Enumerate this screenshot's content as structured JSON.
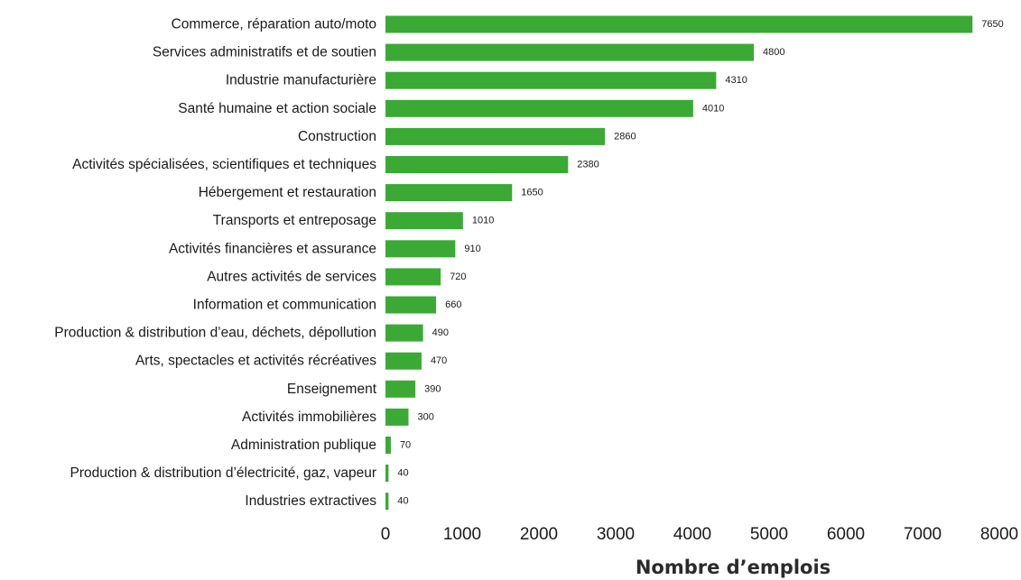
{
  "chart_data": {
    "type": "bar",
    "orientation": "horizontal",
    "categories": [
      "Commerce, réparation auto/moto",
      "Services administratifs et de soutien",
      "Industrie manufacturière",
      "Santé humaine et action sociale",
      "Construction",
      "Activités spécialisées, scientifiques et techniques",
      "Hébergement et restauration",
      "Transports et entreposage",
      "Activités financières et assurance",
      "Autres activités de services",
      "Information et communication",
      "Production & distribution d’eau, déchets, dépollution",
      "Arts, spectacles et activités récréatives",
      "Enseignement",
      "Activités immobilières",
      "Administration publique",
      "Production & distribution d’électricité, gaz, vapeur",
      "Industries extractives"
    ],
    "values": [
      7650,
      4800,
      4310,
      4010,
      2860,
      2380,
      1650,
      1010,
      910,
      720,
      660,
      490,
      470,
      390,
      300,
      70,
      40,
      40
    ],
    "data_labels": [
      "7650",
      "4800",
      "4310",
      "4010",
      "2860",
      "2380",
      "1650",
      "1010",
      "910",
      "720",
      "660",
      "490",
      "470",
      "390",
      "300",
      "70",
      "40",
      "40"
    ],
    "title": "",
    "xlabel": "Nombre d’emplois",
    "ylabel": "",
    "xlim": [
      0,
      8000
    ],
    "xticks": [
      0,
      1000,
      2000,
      3000,
      4000,
      5000,
      6000,
      7000,
      8000
    ],
    "xtick_labels": [
      "0",
      "1000",
      "2000",
      "3000",
      "4000",
      "5000",
      "6000",
      "7000",
      "8000"
    ],
    "grid": false,
    "legend": "none",
    "colors": {
      "bar": "#3aaa35",
      "text": "#1a1a1a"
    }
  }
}
